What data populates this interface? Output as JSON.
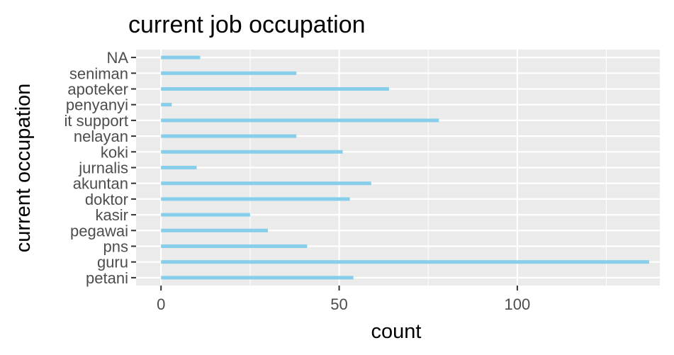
{
  "chart_data": {
    "type": "bar",
    "orientation": "horizontal",
    "title": "current job occupation",
    "xlabel": "count",
    "ylabel": "current occupation",
    "categories": [
      "petani",
      "guru",
      "pns",
      "pegawai",
      "kasir",
      "doktor",
      "akuntan",
      "jurnalis",
      "koki",
      "nelayan",
      "it support",
      "penyanyi",
      "apoteker",
      "seniman",
      "NA"
    ],
    "values": [
      54,
      137,
      41,
      30,
      25,
      53,
      59,
      10,
      51,
      38,
      78,
      3,
      64,
      38,
      11
    ],
    "xticks": [
      0,
      50,
      100
    ],
    "xlim": [
      -7,
      140
    ],
    "grid": true,
    "legend": "none",
    "colors": {
      "bar": "#87ceeb",
      "panel": "#ebebeb",
      "grid": "#ffffff"
    }
  }
}
